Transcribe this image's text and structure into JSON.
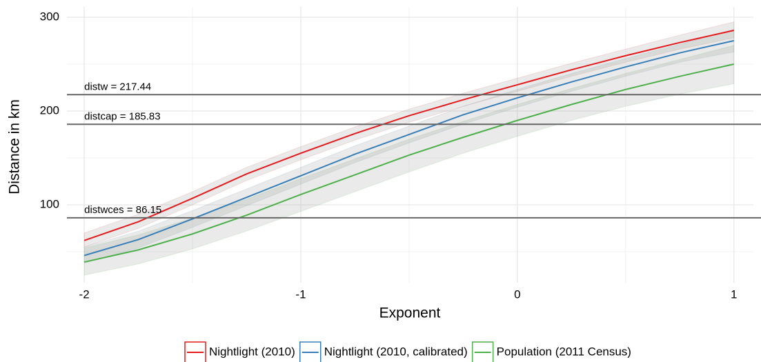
{
  "chart_data": {
    "type": "line",
    "x_label": "Exponent",
    "y_label": "Distance in km",
    "x": [
      -2,
      -1.75,
      -1.5,
      -1.25,
      -1,
      -0.75,
      -0.5,
      -0.25,
      0,
      0.25,
      0.5,
      0.75,
      1
    ],
    "xlim": [
      -2.08,
      1.09
    ],
    "xticks": [
      -2,
      -1,
      0,
      1
    ],
    "xminor": [
      -1.5,
      -0.5,
      0.5
    ],
    "ylim": [
      17,
      311
    ],
    "yticks": [
      100,
      200,
      300
    ],
    "yminor": [
      50,
      150,
      250
    ],
    "grid": true,
    "legend": "bottom",
    "ribbon_color": "#a8aaa8",
    "series": [
      {
        "name": "Nightlight (2010)",
        "color": "#e41a1c",
        "values": [
          62,
          82,
          107,
          133,
          155,
          176,
          195,
          212,
          228,
          244,
          259,
          273,
          286
        ],
        "lower": [
          55,
          75,
          100,
          126,
          148,
          169,
          188,
          205,
          221,
          237,
          252,
          266,
          278
        ],
        "upper": [
          70,
          90,
          114,
          140,
          162,
          183,
          202,
          219,
          235,
          251,
          266,
          281,
          295
        ]
      },
      {
        "name": "Nightlight (2010, calibrated)",
        "color": "#377eb8",
        "values": [
          46,
          63,
          85,
          108,
          131,
          154,
          175,
          196,
          214,
          231,
          247,
          262,
          275
        ],
        "lower": [
          38,
          54,
          76,
          99,
          122,
          145,
          166,
          186,
          204,
          221,
          237,
          252,
          263
        ],
        "upper": [
          55,
          72,
          94,
          117,
          140,
          163,
          184,
          205,
          223,
          240,
          256,
          271,
          287
        ]
      },
      {
        "name": "Population (2011 Census)",
        "color": "#4daf4a",
        "values": [
          39,
          52,
          69,
          89,
          111,
          132,
          153,
          172,
          190,
          207,
          223,
          237,
          250
        ],
        "lower": [
          25,
          37,
          53,
          72,
          93,
          114,
          135,
          155,
          173,
          190,
          205,
          218,
          229
        ],
        "upper": [
          54,
          68,
          86,
          106,
          128,
          149,
          170,
          189,
          207,
          224,
          240,
          255,
          270
        ]
      }
    ],
    "hlines": [
      {
        "label": "distw  =  217.44",
        "value": 217.44
      },
      {
        "label": "distcap  =  185.83",
        "value": 185.83
      },
      {
        "label": "distwces  =  86.15",
        "value": 86.15
      }
    ]
  }
}
